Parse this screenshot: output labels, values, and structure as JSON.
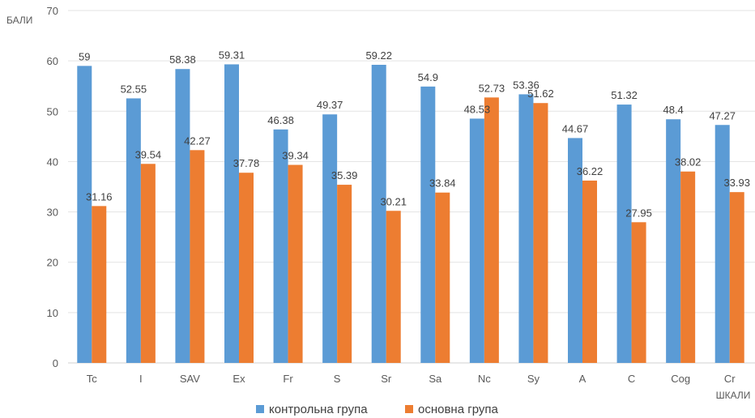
{
  "chart_data": {
    "type": "bar",
    "title": "",
    "ylabel": "БАЛИ",
    "xlabel": "ШКАЛИ",
    "ylim": [
      0,
      70
    ],
    "yticks": [
      0,
      10,
      20,
      30,
      40,
      50,
      60,
      70
    ],
    "grid": true,
    "legend_position": "bottom",
    "categories": [
      "Tc",
      "I",
      "SAV",
      "Ex",
      "Fr",
      "S",
      "Sr",
      "Sa",
      "Nc",
      "Sy",
      "A",
      "C",
      "Cog",
      "Cr"
    ],
    "series": [
      {
        "name": "контрольна група",
        "color": "#5B9BD5",
        "values": [
          59,
          52.55,
          58.38,
          59.31,
          46.38,
          49.37,
          59.22,
          54.9,
          48.53,
          53.36,
          44.67,
          51.32,
          48.4,
          47.27
        ]
      },
      {
        "name": "основна група",
        "color": "#ED7D31",
        "values": [
          31.16,
          39.54,
          42.27,
          37.78,
          39.34,
          35.39,
          30.21,
          33.84,
          52.73,
          51.62,
          36.22,
          27.95,
          38.02,
          33.93
        ]
      }
    ]
  }
}
